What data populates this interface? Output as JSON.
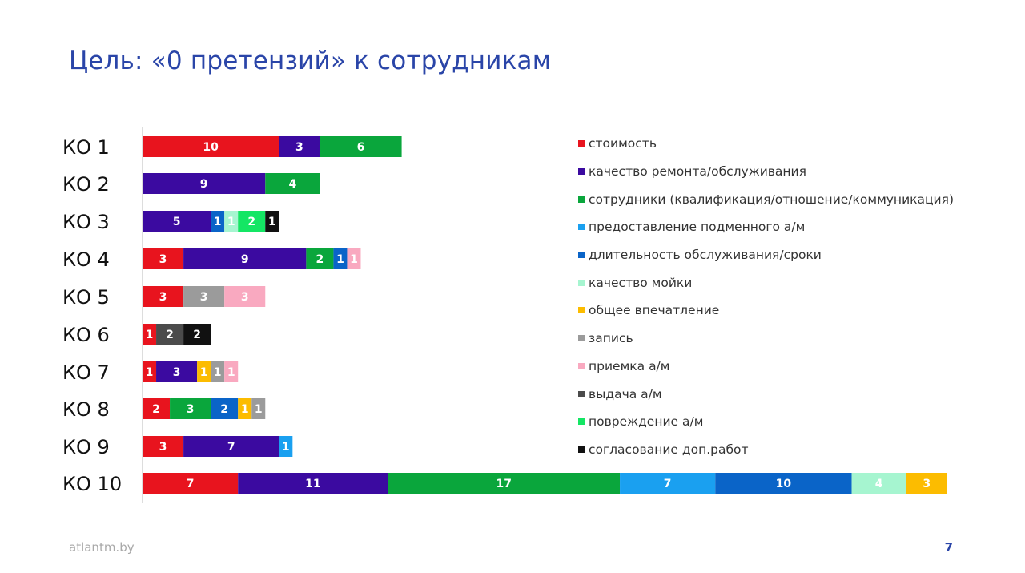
{
  "slide": {
    "title": "Цель: «0 претензий» к сотрудникам",
    "footer_site": "atlantm.by",
    "page_number": "7"
  },
  "chart_data": {
    "type": "bar",
    "orientation": "horizontal",
    "stacked": true,
    "title": "",
    "xlabel": "",
    "ylabel": "",
    "grid": false,
    "legend_position": "right",
    "categories": [
      "КО 1",
      "КО 2",
      "КО 3",
      "КО 4",
      "КО 5",
      "КО 6",
      "КО 7",
      "КО 8",
      "КО 9",
      "КО 10"
    ],
    "series": [
      {
        "name": "стоимость",
        "color": "#e8141e",
        "values": [
          10,
          0,
          0,
          3,
          3,
          1,
          1,
          2,
          3,
          7
        ]
      },
      {
        "name": "качество ремонта/обслуживания",
        "color": "#3b0aa0",
        "values": [
          3,
          9,
          5,
          9,
          0,
          0,
          3,
          0,
          7,
          11
        ]
      },
      {
        "name": "сотрудники (квалификация/отношение/коммуникация)",
        "color": "#0aa63c",
        "values": [
          6,
          4,
          0,
          2,
          0,
          0,
          0,
          3,
          0,
          17
        ]
      },
      {
        "name": "предоставление подменного а/м",
        "color": "#1aa0f0",
        "values": [
          0,
          0,
          0,
          0,
          0,
          0,
          0,
          0,
          1,
          7
        ]
      },
      {
        "name": "длительность обслуживания/сроки",
        "color": "#0a64c8",
        "values": [
          0,
          0,
          1,
          1,
          0,
          0,
          0,
          2,
          0,
          10
        ]
      },
      {
        "name": "качество мойки",
        "color": "#a6f5d0",
        "values": [
          0,
          0,
          1,
          0,
          0,
          0,
          0,
          0,
          0,
          4
        ]
      },
      {
        "name": "общее впечатление",
        "color": "#fcbc00",
        "values": [
          0,
          0,
          0,
          0,
          0,
          0,
          1,
          1,
          0,
          3
        ]
      },
      {
        "name": "запись",
        "color": "#9b9b9b",
        "values": [
          0,
          0,
          0,
          0,
          3,
          0,
          1,
          1,
          0,
          0
        ]
      },
      {
        "name": "приемка а/м",
        "color": "#f9a9c0",
        "values": [
          0,
          0,
          0,
          1,
          3,
          0,
          1,
          0,
          0,
          0
        ]
      },
      {
        "name": "выдача а/м",
        "color": "#4b4b4b",
        "values": [
          0,
          0,
          0,
          0,
          0,
          2,
          0,
          0,
          0,
          0
        ]
      },
      {
        "name": "повреждение а/м",
        "color": "#14e664",
        "values": [
          0,
          0,
          2,
          0,
          0,
          0,
          0,
          0,
          0,
          0
        ]
      },
      {
        "name": "согласование доп.работ",
        "color": "#111111",
        "values": [
          0,
          0,
          1,
          0,
          0,
          2,
          0,
          0,
          0,
          0
        ]
      }
    ]
  }
}
